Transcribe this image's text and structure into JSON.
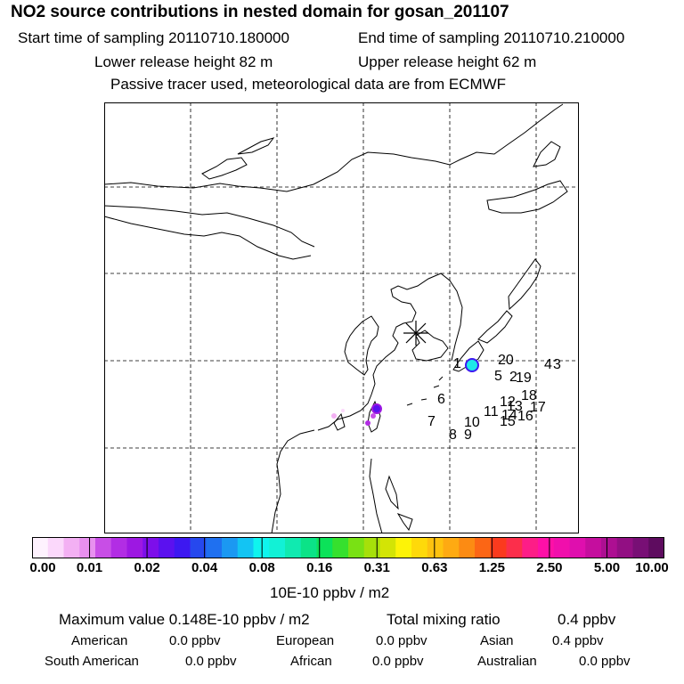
{
  "header": {
    "title": "NO2 source contributions in nested domain for gosan_201107",
    "start": "Start time of sampling 20110710.180000",
    "end": "End time of sampling 20110710.210000",
    "lower": "Lower release height   82 m",
    "upper": "Upper release height   62 m",
    "note": "Passive tracer used, meteorological data are from ECMWF"
  },
  "map": {
    "release_labels": [
      "1",
      "20",
      "4",
      "3",
      "5",
      "2",
      "19",
      "6",
      "18",
      "12",
      "13",
      "11",
      "14",
      "15",
      "16",
      "17",
      "7",
      "10",
      "8",
      "9"
    ]
  },
  "legend": {
    "colors": [
      "#fef2fe",
      "#fbd8fb",
      "#f3b0f3",
      "#e890ef",
      "#c84ee6",
      "#b22de4",
      "#9d18e2",
      "#7d0fea",
      "#5b11ef",
      "#3d18f1",
      "#2648ee",
      "#1f70f0",
      "#1b98f2",
      "#13c4f3",
      "#0ff4ee",
      "#12f1d6",
      "#10eab0",
      "#0be387",
      "#0ce259",
      "#36e02e",
      "#79e114",
      "#a6e00a",
      "#d3e405",
      "#fdf307",
      "#fed90a",
      "#fec20f",
      "#feaa12",
      "#fc8b13",
      "#fc6615",
      "#fb3a1e",
      "#fc2e4b",
      "#fd1d87",
      "#fe10a7",
      "#f00fac",
      "#df0fae",
      "#c50e9e",
      "#ad0f92",
      "#920f83",
      "#780f75",
      "#5e0c5f"
    ],
    "ticks": [
      "0.00",
      "0.01",
      "0.02",
      "0.04",
      "0.08",
      "0.16",
      "0.31",
      "0.63",
      "1.25",
      "2.50",
      "5.00",
      "10.00"
    ],
    "unit": "10E-10 ppbv / m2"
  },
  "summary": {
    "max_value": "Maximum value  0.148E-10 ppbv / m2",
    "total_mixing": "Total mixing ratio",
    "total_value": "0.4 ppbv",
    "regions": [
      {
        "name": "American",
        "value": "0.0 ppbv"
      },
      {
        "name": "European",
        "value": "0.0 ppbv"
      },
      {
        "name": "Asian",
        "value": "0.4 ppbv"
      },
      {
        "name": "South American",
        "value": "0.0 ppbv"
      },
      {
        "name": "African",
        "value": "0.0 ppbv"
      },
      {
        "name": "Australian",
        "value": "0.0 ppbv"
      }
    ]
  }
}
